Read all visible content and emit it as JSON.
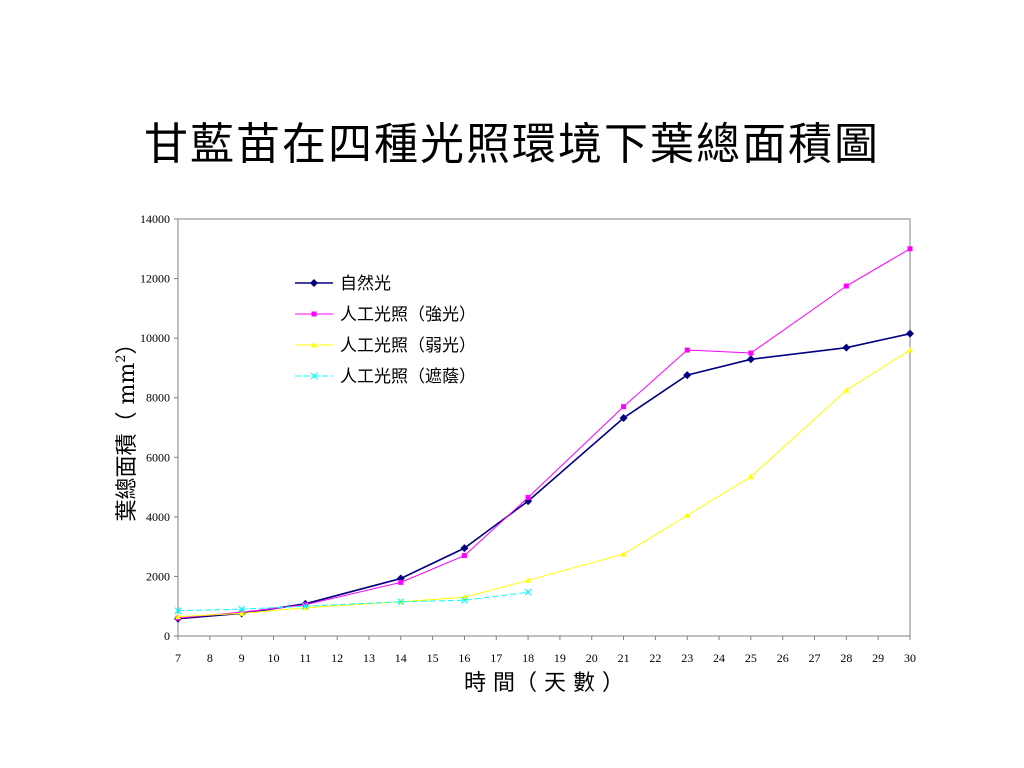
{
  "chart_data": {
    "type": "line",
    "title": "甘藍苗在四種光照環境下葉總面積圖",
    "xlabel": "時 間（ 天 數 ）",
    "ylabel": "葉總面積（ mm",
    "ylabel_sup": "2",
    "ylabel_close": "）",
    "xlim": [
      7,
      30
    ],
    "ylim": [
      0,
      14000
    ],
    "x_ticks": [
      7,
      8,
      9,
      10,
      11,
      12,
      13,
      14,
      15,
      16,
      17,
      18,
      19,
      20,
      21,
      22,
      23,
      24,
      25,
      26,
      27,
      28,
      29,
      30
    ],
    "y_ticks": [
      0,
      2000,
      4000,
      6000,
      8000,
      10000,
      12000,
      14000
    ],
    "grid": false,
    "legend_position": "top-left-inside",
    "series": [
      {
        "name": "自然光",
        "color": "#000080",
        "marker": "diamond",
        "dash": "",
        "x": [
          7,
          9,
          11,
          14,
          16,
          18,
          21,
          23,
          25,
          28,
          30
        ],
        "y": [
          580,
          760,
          1080,
          1930,
          2950,
          4530,
          7320,
          8760,
          9290,
          9680,
          10150
        ]
      },
      {
        "name": "人工光照（強光）",
        "color": "#FF00FF",
        "marker": "square",
        "dash": "",
        "x": [
          7,
          9,
          11,
          14,
          16,
          18,
          21,
          23,
          25,
          28,
          30
        ],
        "y": [
          600,
          800,
          1050,
          1800,
          2700,
          4650,
          7700,
          9600,
          9500,
          11750,
          13000
        ]
      },
      {
        "name": "人工光照（弱光）",
        "color": "#FFFF00",
        "marker": "triangle",
        "dash": "",
        "x": [
          7,
          9,
          11,
          14,
          16,
          18,
          21,
          23,
          25,
          28,
          30
        ],
        "y": [
          650,
          760,
          950,
          1150,
          1300,
          1870,
          2750,
          4050,
          5350,
          8250,
          9600
        ]
      },
      {
        "name": "人工光照（遮蔭）",
        "color": "#00FFFF",
        "marker": "x",
        "dash": "6,3",
        "x": [
          7,
          9,
          11,
          14,
          16,
          18
        ],
        "y": [
          850,
          900,
          1000,
          1150,
          1200,
          1470
        ]
      }
    ]
  }
}
